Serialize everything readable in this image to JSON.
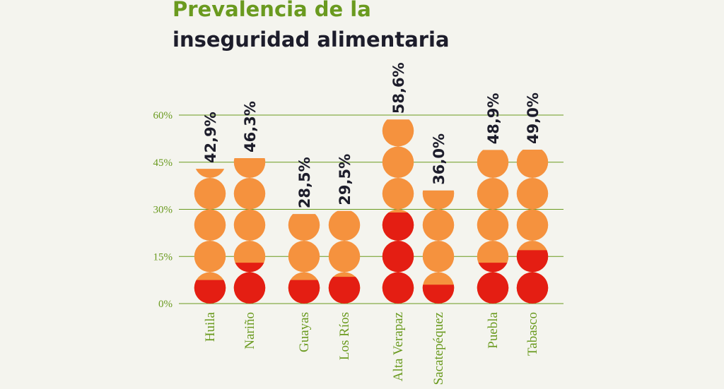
{
  "title_line1": "Prevalencia de la",
  "title_line2": "inseguridad alimentaria",
  "colors": {
    "background": "#f4f4ee",
    "moderate": "#f5923e",
    "severe": "#e41e13",
    "grid": "#6a9a1f",
    "title_green": "#6a9a1f",
    "title_dark": "#1d1d2b"
  },
  "chart_data": {
    "type": "bar",
    "title": "Prevalencia de la inseguridad alimentaria",
    "xlabel": "",
    "ylabel": "",
    "ylim": [
      0,
      60
    ],
    "y_ticks": [
      0,
      15,
      30,
      45,
      60
    ],
    "y_tick_labels": [
      "0%",
      "15%",
      "30%",
      "45%",
      "60%"
    ],
    "categories": [
      "Huila",
      "Nariño",
      "Guayas",
      "Los Ríos",
      "Alta Verapaz",
      "Sacatepéquez",
      "Puebla",
      "Tabasco"
    ],
    "value_labels": [
      "42,9%",
      "46,3%",
      "28,5%",
      "29,5%",
      "58,6%",
      "36,0%",
      "48,9%",
      "49,0%"
    ],
    "series": [
      {
        "values": [
          42.9,
          46.3,
          28.5,
          29.5,
          58.6,
          36.0,
          48.9,
          49.0
        ]
      },
      {
        "values": [
          7.5,
          13.0,
          7.5,
          8.5,
          29.0,
          6.0,
          13.0,
          17.0
        ]
      }
    ]
  }
}
